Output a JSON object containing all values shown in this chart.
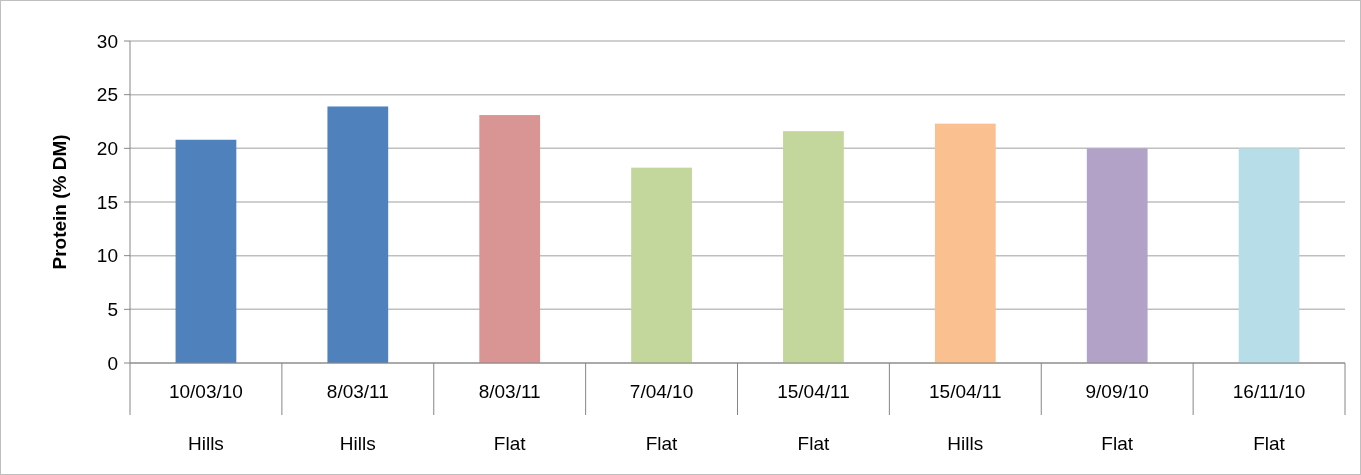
{
  "chart_data": {
    "type": "bar",
    "ylabel": "Protein (% DM)",
    "categories": [
      "10/03/10\nHills",
      "8/03/11\nHills",
      "8/03/11\nFlat",
      "7/04/10\nFlat",
      "15/04/11\nFlat",
      "15/04/11\nHills",
      "9/09/10\nFlat",
      "16/11/10\nFlat"
    ],
    "values": [
      20.8,
      23.9,
      23.1,
      18.2,
      21.6,
      22.3,
      20.0,
      20.0
    ],
    "colors": [
      "#4f81bd",
      "#4f81bd",
      "#d99594",
      "#c3d69b",
      "#c3d69b",
      "#fac090",
      "#b2a2c7",
      "#b7dde8"
    ],
    "ylim": [
      0,
      30
    ],
    "yticks": [
      0,
      5,
      10,
      15,
      20,
      25,
      30
    ],
    "grid": "y"
  }
}
